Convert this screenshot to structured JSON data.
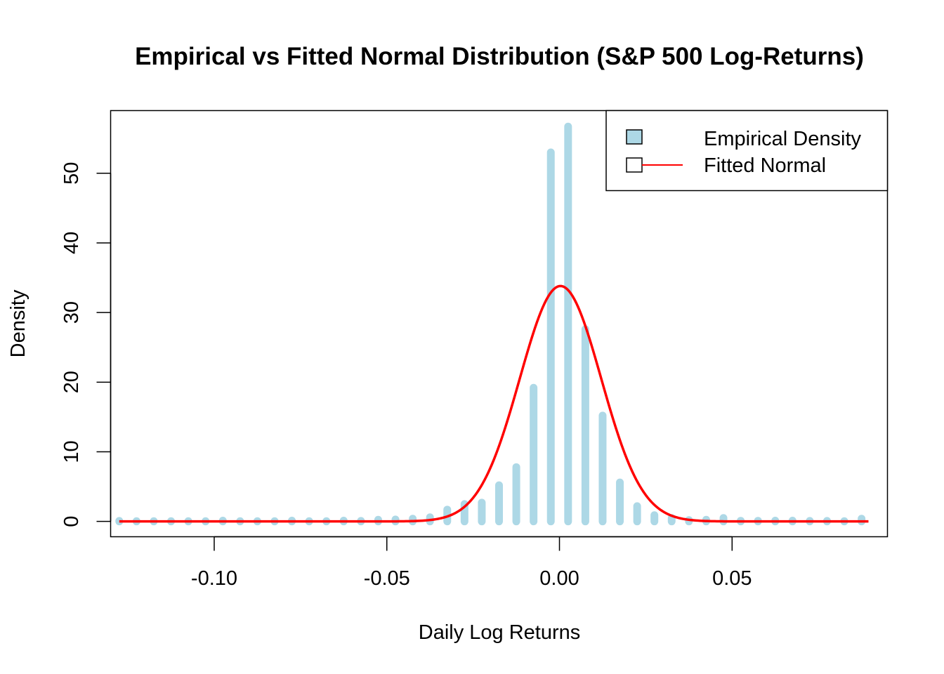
{
  "chart_data": {
    "type": "bar",
    "title": "Empirical vs Fitted Normal Distribution (S&P 500 Log-Returns)",
    "xlabel": "Daily Log Returns",
    "ylabel": "Density",
    "xlim": [
      -0.13,
      0.095
    ],
    "ylim": [
      -2.2,
      59
    ],
    "x_ticks": [
      -0.1,
      -0.05,
      0.0,
      0.05
    ],
    "x_tick_labels": [
      "-0.10",
      "-0.05",
      "0.00",
      "0.05"
    ],
    "y_ticks": [
      0,
      10,
      20,
      30,
      40,
      50
    ],
    "y_tick_labels": [
      "0",
      "10",
      "20",
      "30",
      "40",
      "50"
    ],
    "bars_color": "#add8e6",
    "curve_color": "#ff0000",
    "histogram": {
      "name": "Empirical Density",
      "x": [
        -0.1275,
        -0.1225,
        -0.1175,
        -0.1125,
        -0.1075,
        -0.1025,
        -0.0975,
        -0.0925,
        -0.0875,
        -0.0825,
        -0.0775,
        -0.0725,
        -0.0675,
        -0.0625,
        -0.0575,
        -0.0525,
        -0.0475,
        -0.0425,
        -0.0375,
        -0.0325,
        -0.0275,
        -0.0225,
        -0.0175,
        -0.0125,
        -0.0075,
        -0.0025,
        0.0025,
        0.0075,
        0.0125,
        0.0175,
        0.0225,
        0.0275,
        0.0325,
        0.0375,
        0.0425,
        0.0475,
        0.0525,
        0.0575,
        0.0625,
        0.0675,
        0.0725,
        0.0775,
        0.0825,
        0.0875
      ],
      "density": [
        0.08,
        0.04,
        0.04,
        0.04,
        0.04,
        0.04,
        0.12,
        0.04,
        0.04,
        0.04,
        0.12,
        0.04,
        0.04,
        0.12,
        0.08,
        0.24,
        0.28,
        0.4,
        0.6,
        1.7,
        2.5,
        2.7,
        5.2,
        7.8,
        19.2,
        53,
        56.7,
        27.6,
        15.2,
        5.6,
        2.2,
        0.9,
        0.5,
        0.2,
        0.24,
        0.5,
        0.1,
        0.1,
        0.12,
        0.12,
        0.08,
        0.08,
        0.04,
        0.4
      ]
    },
    "fitted_normal": {
      "name": "Fitted Normal",
      "mean": 0.0003,
      "sd": 0.0118,
      "x_range": [
        -0.1275,
        0.0895
      ]
    },
    "legend": {
      "position": "top-right",
      "entries": [
        "Empirical Density",
        "Fitted Normal"
      ]
    },
    "grid": false
  }
}
